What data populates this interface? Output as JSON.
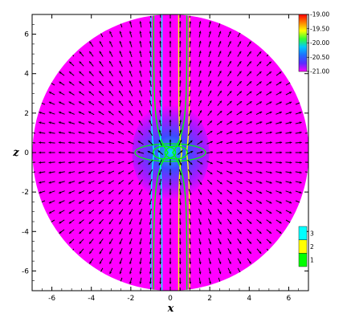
{
  "chart_data": {
    "type": "heatmap",
    "title": "",
    "xlabel": "x",
    "ylabel": "z",
    "xlim": [
      -7,
      7
    ],
    "ylim": [
      -7,
      7
    ],
    "x_ticks": [
      -6,
      -4,
      -2,
      0,
      2,
      4,
      6
    ],
    "y_ticks": [
      -6,
      -4,
      -2,
      0,
      2,
      4,
      6
    ],
    "x_tick_labels": [
      "-6",
      "-4",
      "-2",
      "0",
      "2",
      "4",
      "6"
    ],
    "y_tick_labels": [
      "-6",
      "-4",
      "-2",
      "0",
      "2",
      "4",
      "6"
    ],
    "domain": "circle",
    "domain_radius": 7,
    "grid": false,
    "background_value": -21.0,
    "colorbar_density": {
      "placement": "top-right",
      "range": [
        -21.0,
        -19.0
      ],
      "ticks": [
        -21.0,
        -20.5,
        -20.0,
        -19.5,
        -19.0
      ],
      "tick_labels": [
        "-21.00",
        "-20.50",
        "-20.00",
        "-19.50",
        "-19.00"
      ],
      "colors": [
        "#ff00ff",
        "#5a2bff",
        "#1f6dff",
        "#00c8ff",
        "#33ff33",
        "#ffff00",
        "#ff8000",
        "#ff0000"
      ]
    },
    "colorbar_lines": {
      "placement": "bottom-right",
      "levels": [
        1,
        2,
        3
      ],
      "tick_labels": [
        "1",
        "2",
        "3"
      ],
      "colors": [
        "#00ff00",
        "#ffff00",
        "#00ffff"
      ]
    },
    "field_lines": [
      {
        "level": 1,
        "color": "#00ff00",
        "x_at_z0": 0.0
      },
      {
        "level": 2,
        "color": "#ffff00",
        "x_at_z0": 0.7
      },
      {
        "level": 3,
        "color": "#00ffff",
        "x_at_z0": -0.7
      }
    ],
    "vector_field": {
      "spacing": 0.5,
      "pattern": "outflow"
    }
  }
}
